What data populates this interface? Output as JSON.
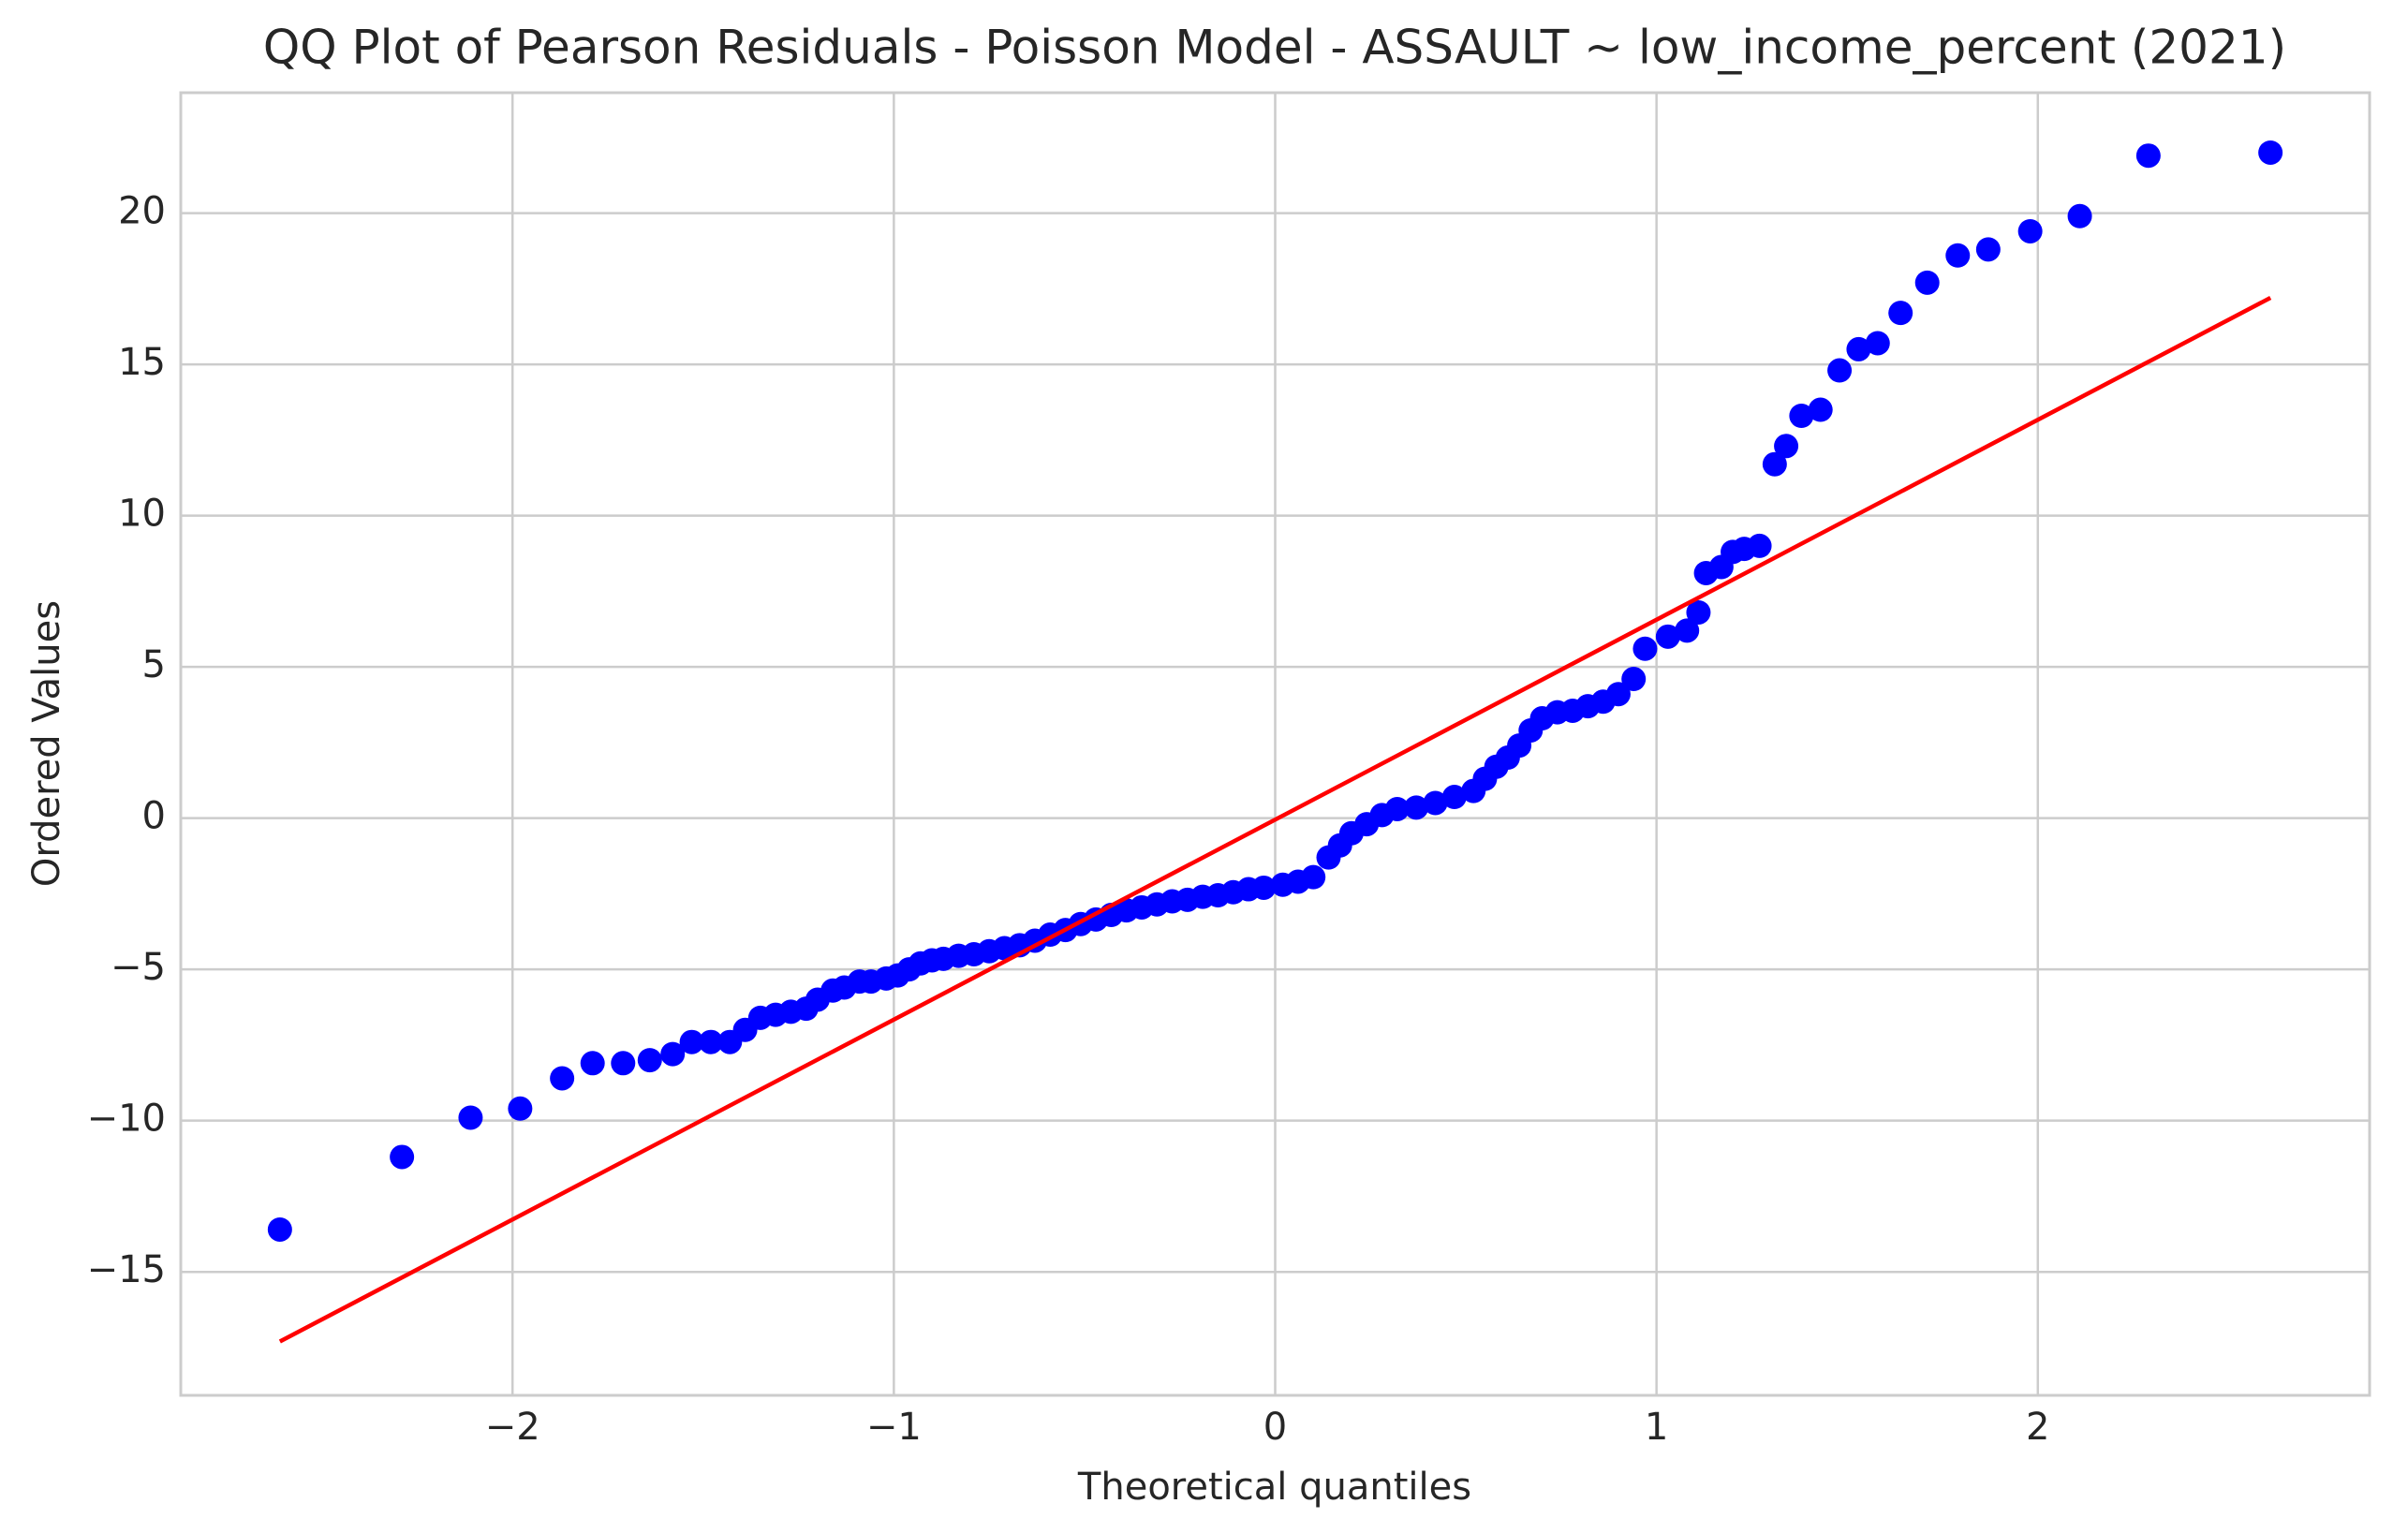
{
  "chart_data": {
    "type": "scatter",
    "title": "QQ Plot of Pearson Residuals - Poisson Model - ASSAULT ~ low_income_percent (2021)",
    "xlabel": "Theoretical quantiles",
    "ylabel": "Ordered Values",
    "x": [
      -2.61,
      -2.29,
      -2.11,
      -1.98,
      -1.87,
      -1.79,
      -1.71,
      -1.64,
      -1.58,
      -1.53,
      -1.48,
      -1.43,
      -1.39,
      -1.35,
      -1.31,
      -1.27,
      -1.23,
      -1.2,
      -1.16,
      -1.13,
      -1.09,
      -1.06,
      -1.02,
      -0.99,
      -0.96,
      -0.93,
      -0.9,
      -0.87,
      -0.83,
      -0.79,
      -0.75,
      -0.71,
      -0.67,
      -0.63,
      -0.59,
      -0.55,
      -0.51,
      -0.47,
      -0.43,
      -0.39,
      -0.35,
      -0.31,
      -0.27,
      -0.23,
      -0.19,
      -0.15,
      -0.11,
      -0.07,
      -0.03,
      0.02,
      0.06,
      0.1,
      0.14,
      0.17,
      0.2,
      0.24,
      0.28,
      0.32,
      0.37,
      0.42,
      0.47,
      0.52,
      0.55,
      0.58,
      0.61,
      0.64,
      0.67,
      0.7,
      0.74,
      0.78,
      0.82,
      0.86,
      0.9,
      0.94,
      0.97,
      1.03,
      1.08,
      1.11,
      1.13,
      1.17,
      1.2,
      1.23,
      1.27,
      1.31,
      1.34,
      1.38,
      1.43,
      1.48,
      1.53,
      1.58,
      1.64,
      1.71,
      1.79,
      1.87,
      1.98,
      2.11,
      2.29,
      2.61
    ],
    "y": [
      -13.6,
      -11.2,
      -9.9,
      -9.6,
      -8.6,
      -8.1,
      -8.1,
      -8.0,
      -7.8,
      -7.4,
      -7.4,
      -7.4,
      -7.0,
      -6.6,
      -6.5,
      -6.4,
      -6.3,
      -6.0,
      -5.7,
      -5.6,
      -5.4,
      -5.4,
      -5.3,
      -5.2,
      -5.0,
      -4.8,
      -4.7,
      -4.65,
      -4.55,
      -4.5,
      -4.4,
      -4.3,
      -4.2,
      -4.05,
      -3.85,
      -3.7,
      -3.5,
      -3.35,
      -3.2,
      -3.05,
      -2.95,
      -2.85,
      -2.75,
      -2.7,
      -2.6,
      -2.55,
      -2.45,
      -2.35,
      -2.3,
      -2.2,
      -2.1,
      -1.95,
      -1.3,
      -0.9,
      -0.5,
      -0.2,
      0.1,
      0.3,
      0.35,
      0.5,
      0.7,
      0.9,
      1.3,
      1.7,
      2.0,
      2.4,
      2.9,
      3.3,
      3.5,
      3.55,
      3.7,
      3.85,
      4.1,
      4.6,
      5.6,
      6.0,
      6.2,
      6.8,
      8.1,
      8.3,
      8.8,
      8.9,
      9.0,
      11.7,
      12.3,
      13.3,
      13.5,
      14.8,
      15.5,
      15.7,
      16.7,
      17.7,
      18.6,
      18.8,
      19.4,
      19.9,
      21.9,
      22.0
    ],
    "color": "#0000ff",
    "line": {
      "x": [
        -2.61,
        2.61
      ],
      "y": [
        -17.3,
        17.2
      ],
      "color": "#ff0000"
    },
    "xlim": [
      -2.87,
      2.87
    ],
    "ylim": [
      -19.08,
      23.98
    ],
    "xticks": [
      {
        "value": -2,
        "label": "−2"
      },
      {
        "value": -1,
        "label": "−1"
      },
      0,
      1,
      2
    ],
    "yticks": [
      {
        "value": -15,
        "label": "−15"
      },
      {
        "value": -10,
        "label": "−10"
      },
      {
        "value": -5,
        "label": "−5"
      },
      0,
      5,
      10,
      15,
      20
    ],
    "grid": true
  }
}
